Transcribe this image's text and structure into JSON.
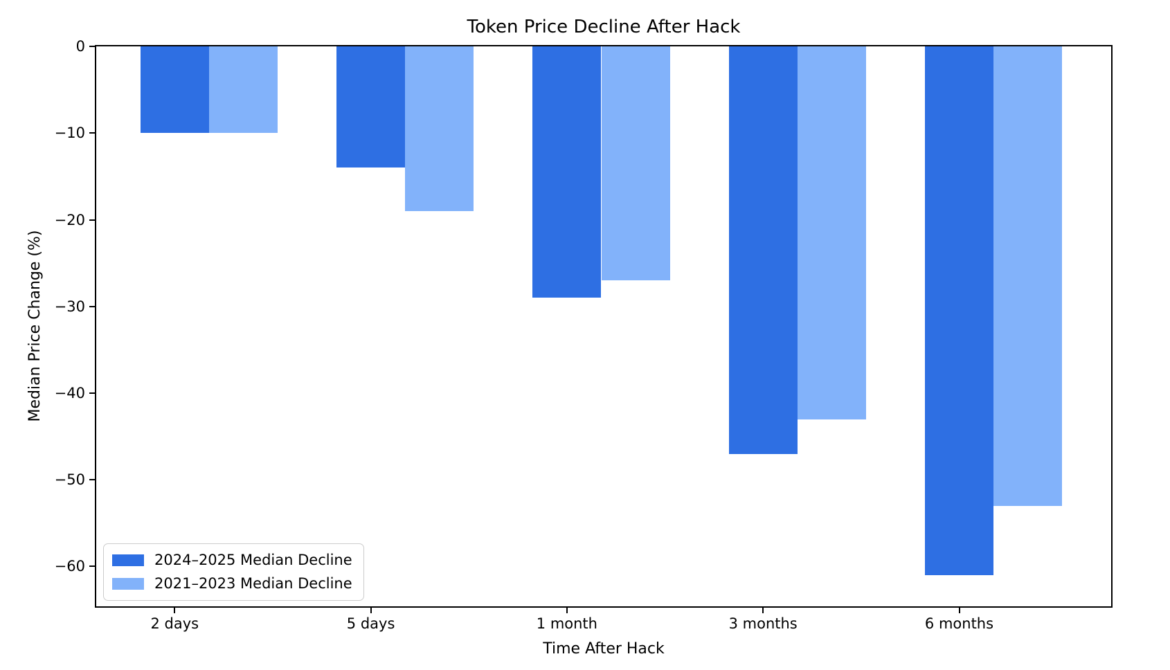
{
  "chart_data": {
    "type": "bar",
    "title": "Token Price Decline After Hack",
    "xlabel": "Time After Hack",
    "ylabel": "Median Price Change (%)",
    "categories": [
      "2 days",
      "5 days",
      "1 month",
      "3 months",
      "6 months"
    ],
    "series": [
      {
        "name": "2024–2025 Median Decline",
        "color": "#2e6fe3",
        "values": [
          -10,
          -14,
          -29,
          -47,
          -61
        ]
      },
      {
        "name": "2021–2023 Median Decline",
        "color": "#82b2fa",
        "values": [
          -10,
          -19,
          -27,
          -43,
          -53
        ]
      }
    ],
    "ylim": [
      -64.6,
      0
    ],
    "yticks": [
      0,
      -10,
      -20,
      -30,
      -40,
      -50,
      -60
    ],
    "ytick_labels": [
      "0",
      "−10",
      "−20",
      "−30",
      "−40",
      "−50",
      "−60"
    ],
    "legend_position": "lower-left",
    "grid": false,
    "background": "#ffffff",
    "bar_width_units": 0.35
  }
}
